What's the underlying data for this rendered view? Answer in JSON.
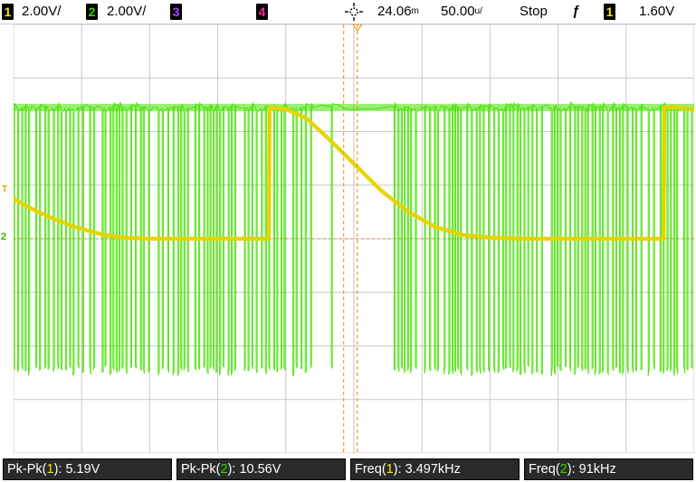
{
  "top_bar": {
    "ch1": {
      "number": "1",
      "scale": "2.00V/"
    },
    "ch2": {
      "number": "2",
      "scale": "2.00V/"
    },
    "ch3": {
      "number": "3"
    },
    "ch4": {
      "number": "4"
    },
    "acquire_icon": "acquire-icon",
    "delay": "24.06",
    "delay_unit": "m",
    "timebase": "50.00",
    "timebase_unit": "u/",
    "run_state": "Stop",
    "trigger_slope_glyph": "ƒ",
    "trigger_source": "1",
    "trigger_level": "1.60V"
  },
  "markers": {
    "trigger_level_marker": "T",
    "ch2_ground_marker": "2"
  },
  "measurements": [
    {
      "prefix": "Pk-Pk(",
      "channel": "1",
      "suffix": "): 5.19V"
    },
    {
      "prefix": "Pk-Pk(",
      "channel": "2",
      "suffix": "): 10.56V"
    },
    {
      "prefix": "Freq(",
      "channel": "1",
      "suffix": "): 3.497kHz"
    },
    {
      "prefix": "Freq(",
      "channel": "2",
      "suffix": "): 91kHz"
    }
  ],
  "colors": {
    "ch1": "#e6d300",
    "ch2": "#46e000",
    "grid": "#c8c8c8",
    "cursor": "#f08a00",
    "meas_bg": "#2a2a2a"
  },
  "chart_data": {
    "type": "line",
    "x_range_div": [
      0,
      10
    ],
    "y_range_div": [
      -4,
      4
    ],
    "grid": true,
    "series": [
      {
        "name": "1",
        "color": "#e6d300",
        "x_div": [
          0,
          0.2,
          0.5,
          0.9,
          1.3,
          1.6,
          2.0,
          2.5,
          3.0,
          3.5,
          3.75,
          3.76,
          4.0,
          4.3,
          4.6,
          5.0,
          5.4,
          5.8,
          6.2,
          6.6,
          7.0,
          7.5,
          8.0,
          8.5,
          9.0,
          9.5,
          9.55,
          9.56,
          9.8,
          10.0
        ],
        "y_div": [
          0.75,
          0.6,
          0.42,
          0.22,
          0.08,
          0.02,
          0.0,
          0.0,
          0.0,
          0.0,
          0.0,
          2.45,
          2.42,
          2.25,
          1.9,
          1.4,
          0.9,
          0.5,
          0.22,
          0.07,
          0.02,
          0.0,
          0.0,
          0.0,
          0.0,
          0.0,
          0.0,
          2.45,
          2.45,
          2.4
        ]
      },
      {
        "name": "2",
        "color": "#46e000",
        "pwm_high_div": 2.45,
        "pwm_low_div": -2.45
      }
    ]
  }
}
